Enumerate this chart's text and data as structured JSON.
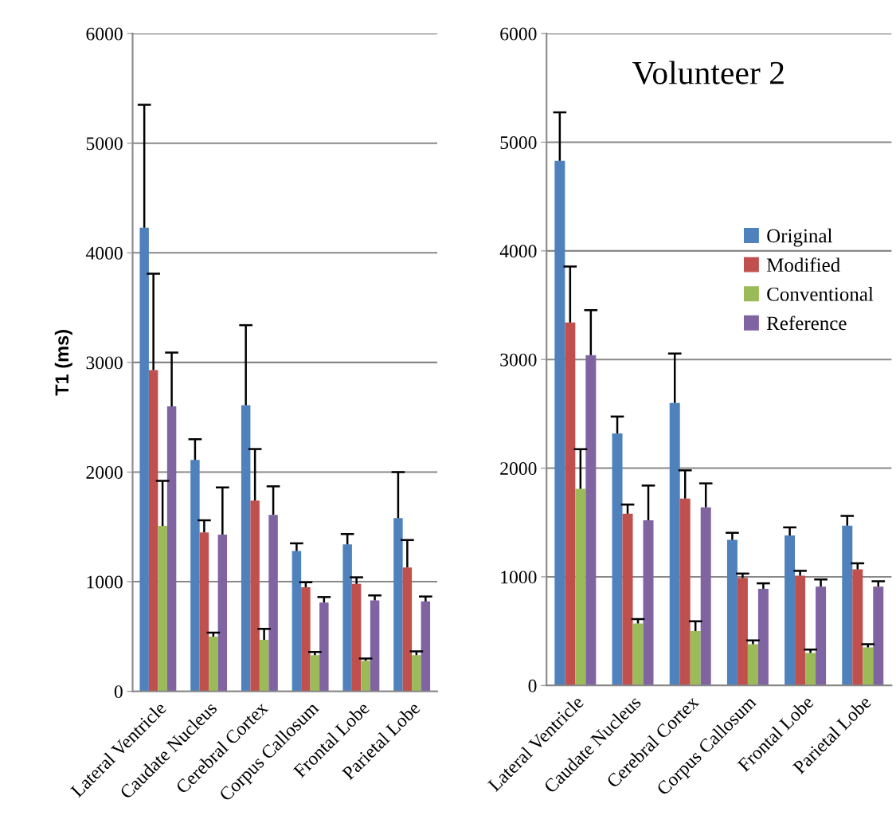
{
  "chart_data": [
    {
      "type": "bar",
      "ylabel": "T1 (ms)",
      "categories": [
        "Lateral Ventricle",
        "Caudate Nucleus",
        "Cerebral Cortex",
        "Corpus Callosum",
        "Frontal Lobe",
        "Parietal Lobe"
      ],
      "ylim": [
        0,
        6000
      ],
      "yticks": [
        0,
        1000,
        2000,
        3000,
        4000,
        5000,
        6000
      ],
      "grid": "y",
      "legend": false,
      "series": [
        {
          "color": "#4f81bd",
          "values": [
            4230,
            2110,
            2610,
            1280,
            1340,
            1580
          ],
          "errors": [
            [
              4230,
              5350
            ],
            [
              2110,
              2300
            ],
            [
              2610,
              3340
            ],
            [
              1280,
              1350
            ],
            [
              1340,
              1435
            ],
            [
              1580,
              2000
            ]
          ]
        },
        {
          "color": "#c0504d",
          "values": [
            2930,
            1450,
            1740,
            950,
            980,
            1130
          ],
          "errors": [
            [
              2930,
              3810
            ],
            [
              1450,
              1560
            ],
            [
              1740,
              2210
            ],
            [
              950,
              995
            ],
            [
              980,
              1040
            ],
            [
              1130,
              1380
            ]
          ]
        },
        {
          "color": "#9bbb59",
          "values": [
            1510,
            500,
            470,
            330,
            280,
            330
          ],
          "errors": [
            [
              1510,
              1920
            ],
            [
              500,
              535
            ],
            [
              470,
              570
            ],
            [
              330,
              360
            ],
            [
              280,
              300
            ],
            [
              330,
              365
            ]
          ]
        },
        {
          "color": "#8064a2",
          "values": [
            2600,
            1430,
            1610,
            810,
            830,
            820
          ],
          "errors": [
            [
              2600,
              3090
            ],
            [
              1430,
              1860
            ],
            [
              1610,
              1870
            ],
            [
              810,
              860
            ],
            [
              830,
              875
            ],
            [
              820,
              865
            ]
          ]
        }
      ]
    },
    {
      "type": "bar",
      "title": "Volunteer 2",
      "categories": [
        "Lateral Ventricle",
        "Caudate Nucleus",
        "Cerebral Cortex",
        "Corpus Callosum",
        "Frontal Lobe",
        "Parietal Lobe"
      ],
      "ylim": [
        0,
        6000
      ],
      "yticks": [
        0,
        1000,
        2000,
        3000,
        4000,
        5000,
        6000
      ],
      "grid": "y",
      "legend": "right",
      "series": [
        {
          "name": "Original",
          "color": "#4f81bd",
          "values": [
            4830,
            2320,
            2600,
            1340,
            1380,
            1470
          ],
          "errors": [
            [
              4830,
              5275
            ],
            [
              2320,
              2475
            ],
            [
              2600,
              3055
            ],
            [
              1340,
              1405
            ],
            [
              1380,
              1455
            ],
            [
              1470,
              1560
            ]
          ]
        },
        {
          "name": "Modified",
          "color": "#c0504d",
          "values": [
            3340,
            1580,
            1720,
            990,
            1010,
            1070
          ],
          "errors": [
            [
              3340,
              3855
            ],
            [
              1580,
              1665
            ],
            [
              1720,
              1980
            ],
            [
              990,
              1030
            ],
            [
              1010,
              1055
            ],
            [
              1070,
              1125
            ]
          ]
        },
        {
          "name": "Conventional",
          "color": "#9bbb59",
          "values": [
            1810,
            570,
            500,
            380,
            300,
            350
          ],
          "errors": [
            [
              1810,
              2175
            ],
            [
              570,
              610
            ],
            [
              500,
              590
            ],
            [
              380,
              415
            ],
            [
              300,
              330
            ],
            [
              350,
              380
            ]
          ]
        },
        {
          "name": "Reference",
          "color": "#8064a2",
          "values": [
            3040,
            1520,
            1640,
            890,
            910,
            910
          ],
          "errors": [
            [
              3040,
              3455
            ],
            [
              1520,
              1840
            ],
            [
              1640,
              1860
            ],
            [
              890,
              940
            ],
            [
              910,
              975
            ],
            [
              910,
              960
            ]
          ]
        }
      ]
    }
  ]
}
